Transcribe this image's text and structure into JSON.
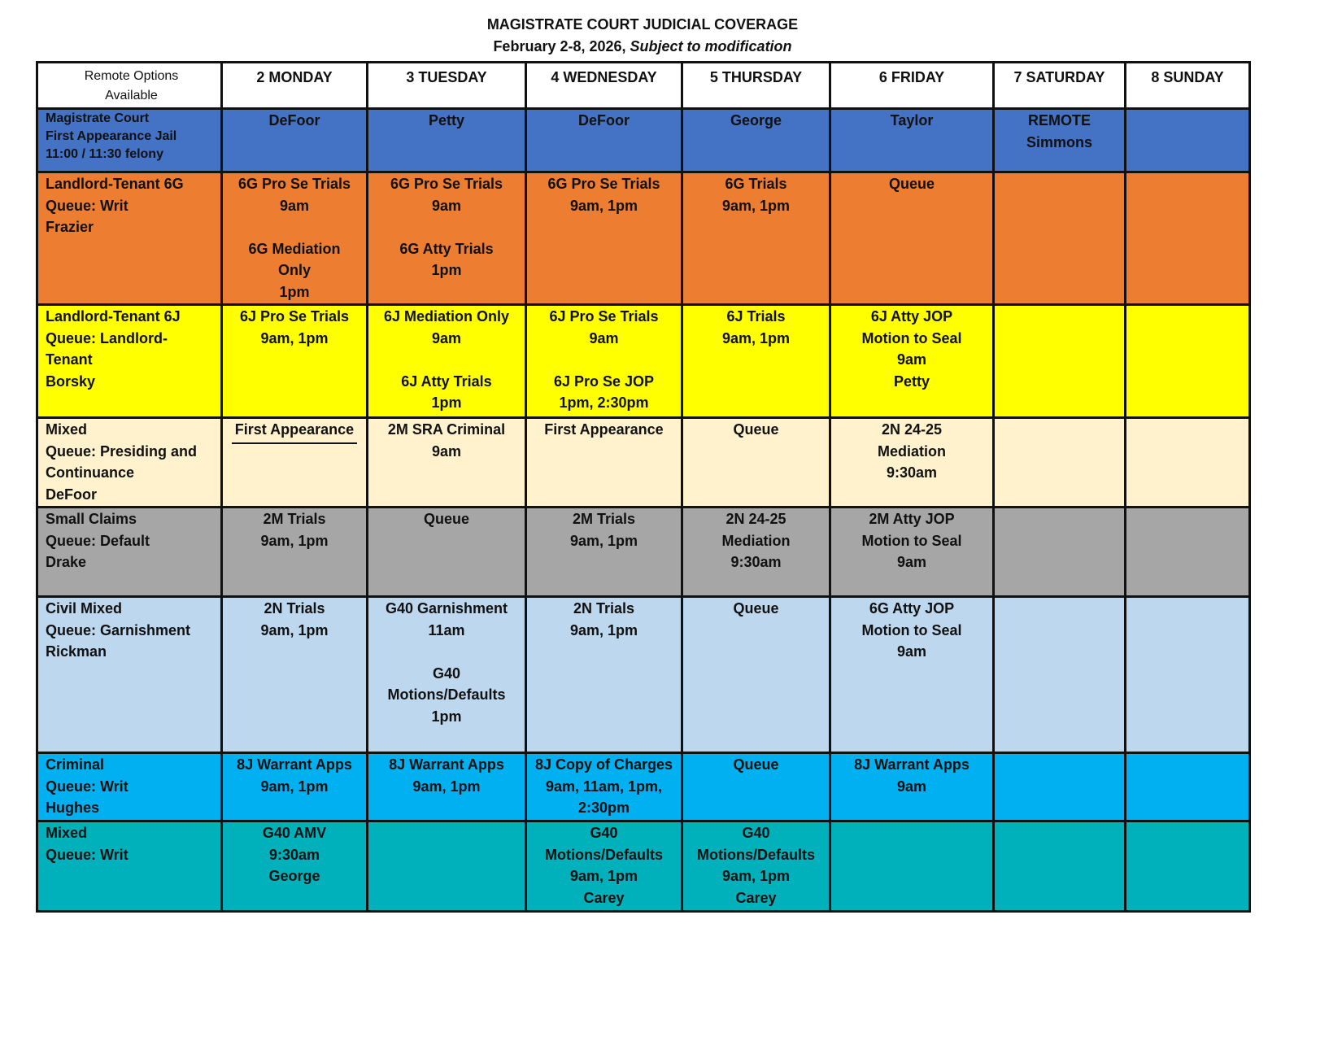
{
  "title": "MAGISTRATE COURT JUDICIAL COVERAGE",
  "subtitle_dates": "February 2-8, 2026,",
  "subtitle_note": "Subject to modification",
  "header": {
    "label": "Remote Options\nAvailable",
    "days": [
      "2 MONDAY",
      "3 TUESDAY",
      "4 WEDNESDAY",
      "5 THURSDAY",
      "6 FRIDAY",
      "7 SATURDAY",
      "8 SUNDAY"
    ]
  },
  "rows": [
    {
      "color": "#4472C4",
      "label": "Magistrate Court\nFirst Appearance Jail\n    11:00 / 11:30 felony",
      "cells": [
        "DeFoor",
        "Petty",
        "DeFoor",
        "George",
        "Taylor",
        "REMOTE\nSimmons",
        ""
      ]
    },
    {
      "color": "#ED7D31",
      "label": "Landlord-Tenant 6G\nQueue: Writ\nFrazier",
      "cells": [
        "6G Pro Se Trials\n9am\n\n6G Mediation\nOnly\n1pm",
        "6G Pro Se Trials\n9am\n\n6G Atty Trials\n1pm",
        "6G Pro Se Trials\n9am, 1pm",
        "6G Trials\n9am, 1pm",
        "Queue",
        "",
        ""
      ]
    },
    {
      "color": "#FFFF00",
      "label": "Landlord-Tenant 6J\nQueue: Landlord-\nTenant\nBorsky",
      "cells": [
        "6J Pro Se Trials\n9am, 1pm",
        "6J Mediation Only\n9am\n\n6J Atty Trials\n1pm",
        "6J Pro Se Trials\n9am\n\n6J Pro Se JOP\n1pm, 2:30pm",
        "6J Trials\n9am, 1pm",
        "6J Atty JOP\nMotion to Seal\n9am\nPetty",
        "",
        ""
      ]
    },
    {
      "color": "#FFF2CC",
      "label": "Mixed\nQueue: Presiding and\nContinuance\n DeFoor",
      "cells": [
        "First Appearance",
        "2M SRA Criminal\n9am",
        "First Appearance",
        "Queue",
        "2N 24-25\nMediation\n9:30am",
        "",
        ""
      ]
    },
    {
      "color": "#A6A6A6",
      "label": "Small Claims\nQueue: Default\nDrake",
      "cells": [
        "2M Trials\n9am, 1pm",
        "Queue",
        "2M Trials\n9am, 1pm",
        "2N 24-25\nMediation\n9:30am",
        "2M Atty JOP\nMotion to Seal\n9am",
        "",
        ""
      ]
    },
    {
      "color": "#BDD7EE",
      "label": "Civil Mixed\nQueue: Garnishment\nRickman",
      "cells": [
        "2N Trials\n9am, 1pm",
        "G40 Garnishment\n11am\n\nG40\nMotions/Defaults\n1pm",
        "2N Trials\n9am, 1pm",
        "Queue",
        "6G Atty JOP\nMotion to Seal\n9am",
        "",
        ""
      ]
    },
    {
      "color": "#00B0F0",
      "label": "Criminal\nQueue: Writ\nHughes",
      "cells": [
        "8J Warrant Apps\n9am, 1pm",
        "8J Warrant Apps\n9am, 1pm",
        "8J Copy of Charges\n9am, 11am, 1pm,\n2:30pm",
        "Queue",
        "8J Warrant Apps\n9am",
        "",
        ""
      ]
    },
    {
      "color": "#00B0BA",
      "label": "Mixed\nQueue: Writ",
      "cells": [
        "G40 AMV\n9:30am\nGeorge",
        "",
        "G40\nMotions/Defaults\n9am, 1pm\nCarey",
        "G40\nMotions/Defaults\n9am, 1pm\nCarey",
        "",
        "",
        ""
      ]
    }
  ]
}
